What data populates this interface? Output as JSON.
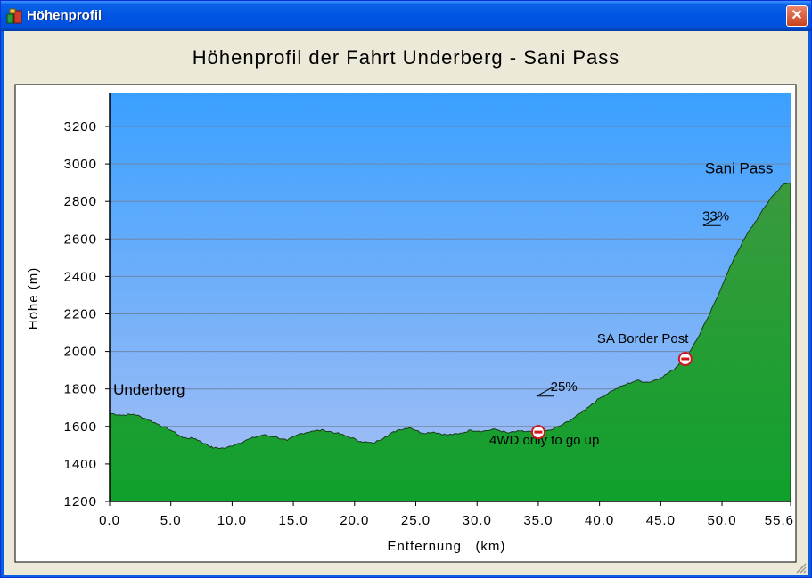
{
  "window": {
    "title": "Höhenprofil",
    "close_label": "✕"
  },
  "icons": {
    "app": "app-icon",
    "close": "close-icon",
    "no_entry": "no-entry-icon",
    "slope": "slope-icon"
  },
  "colors": {
    "sky_top": "#3aa0ff",
    "sky_bottom": "#a9c0f4",
    "terrain_top": "#3a9a3e",
    "terrain_bottom": "#10a02c",
    "marker": "#d0161f"
  },
  "chart_data": {
    "type": "area",
    "title": "Höhenprofil der Fahrt Underberg - Sani Pass",
    "xlabel": "Entfernung   (km)",
    "ylabel": "Höhe (m)",
    "xlim": [
      0,
      55.6
    ],
    "ylim": [
      1200,
      3200
    ],
    "x_ticks": [
      "0.0",
      "5.0",
      "10.0",
      "15.0",
      "20.0",
      "25.0",
      "30.0",
      "35.0",
      "40.0",
      "45.0",
      "50.0",
      "55.6"
    ],
    "y_ticks": [
      "3200",
      "3000",
      "2800",
      "2600",
      "2400",
      "2200",
      "2000",
      "1800",
      "1600",
      "1400",
      "1200"
    ],
    "grid": true,
    "series": [
      {
        "x": [
          0,
          1,
          2,
          3,
          4,
          5,
          6,
          7,
          8,
          8.5,
          9.5,
          10.5,
          11.5,
          12.5,
          13.5,
          14.5,
          15.5,
          16.5,
          17.5,
          18.5,
          19.5,
          20.5,
          21.5,
          22.5,
          23.5,
          24.5,
          25.5,
          26.5,
          27.5,
          28.5,
          29.5,
          30.5,
          31.5,
          32.5,
          33.5,
          34.5,
          35,
          36,
          37,
          38,
          39,
          40,
          41,
          42,
          43,
          44,
          45,
          46,
          46.5,
          47,
          48,
          49,
          50,
          51,
          52,
          53,
          54,
          55,
          55.6
        ],
        "y": [
          1670,
          1660,
          1665,
          1640,
          1610,
          1580,
          1540,
          1535,
          1500,
          1485,
          1485,
          1510,
          1535,
          1555,
          1545,
          1525,
          1560,
          1575,
          1580,
          1565,
          1545,
          1520,
          1510,
          1545,
          1580,
          1595,
          1565,
          1570,
          1555,
          1560,
          1580,
          1575,
          1585,
          1565,
          1575,
          1570,
          1570,
          1580,
          1610,
          1650,
          1700,
          1750,
          1790,
          1820,
          1845,
          1835,
          1860,
          1900,
          1935,
          1960,
          2070,
          2200,
          2350,
          2500,
          2620,
          2720,
          2820,
          2890,
          2900
        ]
      }
    ],
    "annotations": [
      {
        "text": "Underberg",
        "x": 0.3,
        "y": 1770
      },
      {
        "text": "Sani Pass",
        "x": 48.6,
        "y": 2950
      },
      {
        "text": "33%",
        "x": 48.4,
        "y": 2700
      },
      {
        "text": "SA Border Post",
        "x": 39.8,
        "y": 2045
      },
      {
        "text": "25%",
        "x": 36.0,
        "y": 1790
      },
      {
        "text": "4WD only to go up",
        "x": 31.0,
        "y": 1505
      }
    ],
    "markers": [
      {
        "name": "border-post",
        "x": 47.0,
        "y": 1960
      },
      {
        "name": "4wd-start",
        "x": 35.0,
        "y": 1570
      }
    ],
    "slope_marks": [
      {
        "name": "slope-25",
        "x": 35.0,
        "y": 1790
      },
      {
        "name": "slope-33",
        "x": 48.6,
        "y": 2700
      }
    ]
  }
}
